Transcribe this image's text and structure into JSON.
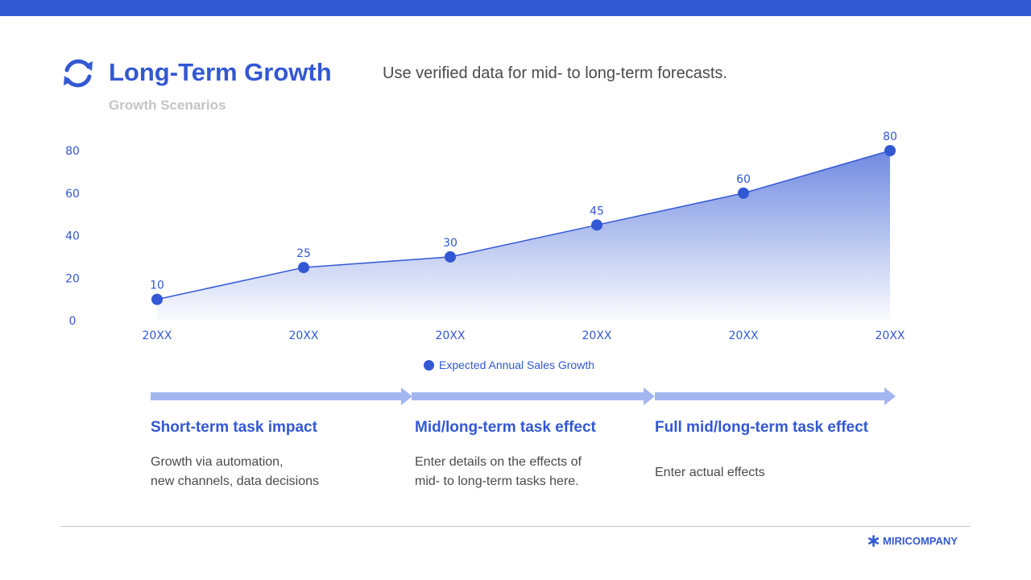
{
  "theme": {
    "accent": "#3358d4",
    "accent_light": "#a4b6f0",
    "muted": "#c4c4c8",
    "text": "#4a4a4a"
  },
  "header": {
    "title": "Long-Term Growth",
    "subtitle": "Growth Scenarios",
    "tagline": "Use verified data for mid- to long-term forecasts.",
    "icon": "refresh-icon"
  },
  "chart_data": {
    "type": "area",
    "categories": [
      "20XX",
      "20XX",
      "20XX",
      "20XX",
      "20XX",
      "20XX"
    ],
    "series": [
      {
        "name": "Expected Annual Sales Growth",
        "values": [
          10,
          25,
          30,
          45,
          60,
          80
        ]
      }
    ],
    "ylim": [
      0,
      80
    ],
    "yticks": [
      0,
      20,
      40,
      60,
      80
    ],
    "data_labels": true,
    "grid": false,
    "legend_position": "bottom-center",
    "color": "#3358d4"
  },
  "phases": [
    {
      "title": "Short-term task impact",
      "description": "Growth via automation,\nnew channels, data decisions"
    },
    {
      "title": "Mid/long-term task effect",
      "description": "Enter details on the effects of\nmid- to long-term tasks here."
    },
    {
      "title": "Full mid/long-term task effect",
      "description": "Enter actual effects"
    }
  ],
  "footer": {
    "brand": "MIRICOMPANY",
    "brand_icon": "asterisk-logo-icon"
  }
}
